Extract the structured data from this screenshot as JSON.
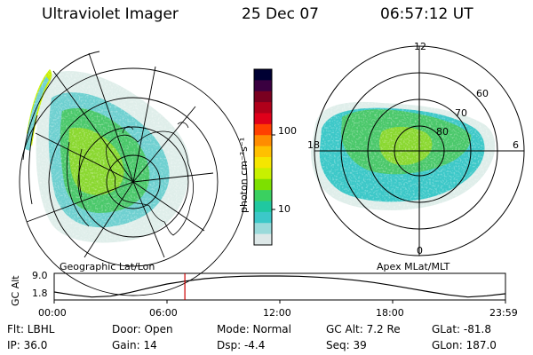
{
  "header": {
    "instrument": "Ultraviolet Imager",
    "date": "25 Dec 07",
    "time": "06:57:12 UT"
  },
  "left_panel": {
    "label": "Geographic Lat/Lon"
  },
  "right_panel": {
    "label": "Apex MLat/MLT",
    "mlt_labels": [
      "12",
      "18",
      "6",
      "0"
    ],
    "mlat_labels": [
      "60",
      "70",
      "80"
    ]
  },
  "colorbar": {
    "unit_label": "photon cm⁻²s⁻¹",
    "ticks": [
      "100",
      "10"
    ],
    "colors": [
      "#000033",
      "#3a0040",
      "#7a0020",
      "#b0001a",
      "#e0001a",
      "#ff4000",
      "#ff8c00",
      "#ffc000",
      "#f5e600",
      "#c8f000",
      "#7de000",
      "#3ad060",
      "#20c8a0",
      "#3cc8c8",
      "#9adada",
      "#dde8e8"
    ]
  },
  "chart_data": {
    "type": "line",
    "title": "",
    "ylabel": "GC Alt",
    "y_ticks": [
      "9.0",
      "1.8"
    ],
    "x_ticks": [
      "00:00",
      "06:00",
      "12:00",
      "18:00",
      "23:59"
    ],
    "ylim": [
      1.8,
      9.0
    ],
    "xlim_hours": [
      0,
      24
    ],
    "x_hours": [
      0,
      1,
      2,
      3,
      4,
      5,
      6,
      7,
      8,
      9,
      10,
      11,
      12,
      13,
      14,
      15,
      16,
      17,
      18,
      19,
      20,
      21,
      22,
      23,
      23.98
    ],
    "y_alt": [
      3.6,
      2.6,
      1.9,
      2.2,
      3.4,
      4.9,
      6.3,
      7.3,
      8.1,
      8.6,
      8.9,
      9.0,
      9.0,
      8.9,
      8.6,
      8.2,
      7.6,
      6.8,
      5.8,
      4.7,
      3.6,
      2.6,
      1.9,
      2.3,
      3.0
    ],
    "marker_time_hours": 6.95,
    "marker_color": "#cc0000"
  },
  "info": {
    "filter": "Flt: LBHL",
    "door": "Door: Open",
    "mode": "Mode: Normal",
    "gc_alt": "GC Alt: 7.2 Re",
    "glat": "GLat: -81.8",
    "ip": "IP: 36.0",
    "gain": "Gain: 14",
    "dsp": "Dsp:    -4.4",
    "seq": "Seq: 39",
    "glon": "GLon: 187.0"
  }
}
